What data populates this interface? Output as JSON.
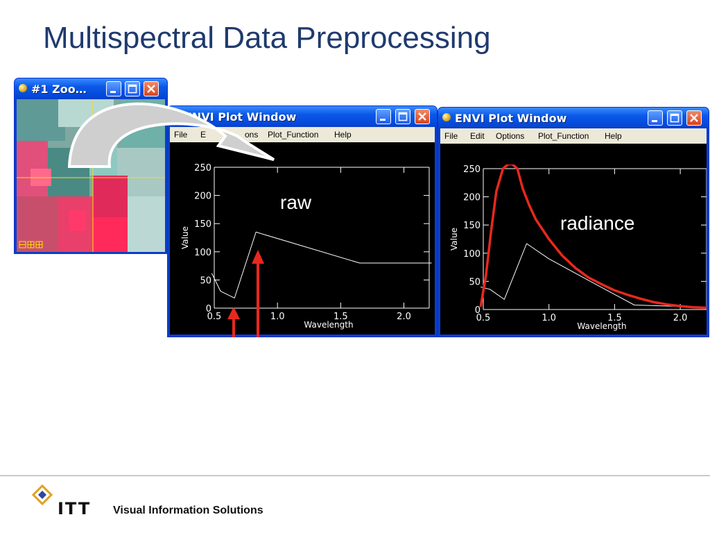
{
  "slide": {
    "title": "Multispectral Data Preprocessing",
    "footer": {
      "logo_text": "ITT",
      "tagline": "Visual Information Solutions"
    }
  },
  "colors": {
    "title": "#1f3a6e",
    "xp_blue": "#0a58e8",
    "red_curve": "#e8281e",
    "red_arrow": "#e8281e"
  },
  "zoom_window": {
    "title": "#1 Zoo…"
  },
  "plot_window_left": {
    "title": "ENVI Plot Window",
    "menu": [
      "File",
      "Edit",
      "Options",
      "Plot_Function",
      "Help"
    ],
    "visible_menu_text": [
      "File",
      "E",
      "ons",
      "Plot_Function",
      "Help"
    ],
    "annotation": "raw"
  },
  "plot_window_right": {
    "title": "ENVI Plot Window",
    "menu": [
      "File",
      "Edit",
      "Options",
      "Plot_Function",
      "Help"
    ],
    "annotation": "radiance"
  },
  "chart_data": [
    {
      "type": "line",
      "xlabel": "Wavelength",
      "ylabel": "Value",
      "xlim": [
        0.5,
        2.2
      ],
      "ylim": [
        0,
        250
      ],
      "xticks": [
        "0.5",
        "1.0",
        "1.5",
        "2.0"
      ],
      "yticks": [
        "0",
        "50",
        "100",
        "150",
        "200",
        "250"
      ],
      "series": [
        {
          "color": "#ffffff",
          "x": [
            0.48,
            0.55,
            0.66,
            0.83,
            1.65,
            2.22
          ],
          "y": [
            62,
            30,
            18,
            135,
            80,
            80
          ]
        }
      ]
    },
    {
      "type": "line",
      "xlabel": "Wavelength",
      "ylabel": "Value",
      "xlim": [
        0.5,
        2.2
      ],
      "ylim": [
        0,
        250
      ],
      "xticks": [
        "0.5",
        "1.0",
        "1.5",
        "2.0"
      ],
      "yticks": [
        "0",
        "50",
        "100",
        "150",
        "200",
        "250"
      ],
      "series": [
        {
          "color": "#ffffff",
          "x": [
            0.48,
            0.55,
            0.66,
            0.83,
            1.0,
            1.3,
            1.65,
            2.22
          ],
          "y": [
            40,
            36,
            18,
            117,
            90,
            52,
            8,
            4
          ]
        },
        {
          "color": "#e8281e",
          "x": [
            0.48,
            0.52,
            0.56,
            0.6,
            0.65,
            0.69,
            0.72,
            0.76,
            0.8,
            0.85,
            0.9,
            1.0,
            1.1,
            1.2,
            1.3,
            1.4,
            1.5,
            1.6,
            1.7,
            1.8,
            1.9,
            2.0,
            2.1,
            2.22
          ],
          "y": [
            5,
            60,
            140,
            210,
            250,
            258,
            258,
            250,
            215,
            185,
            160,
            125,
            96,
            74,
            57,
            45,
            34,
            26,
            19,
            13,
            9,
            6,
            4,
            3
          ]
        }
      ]
    }
  ]
}
